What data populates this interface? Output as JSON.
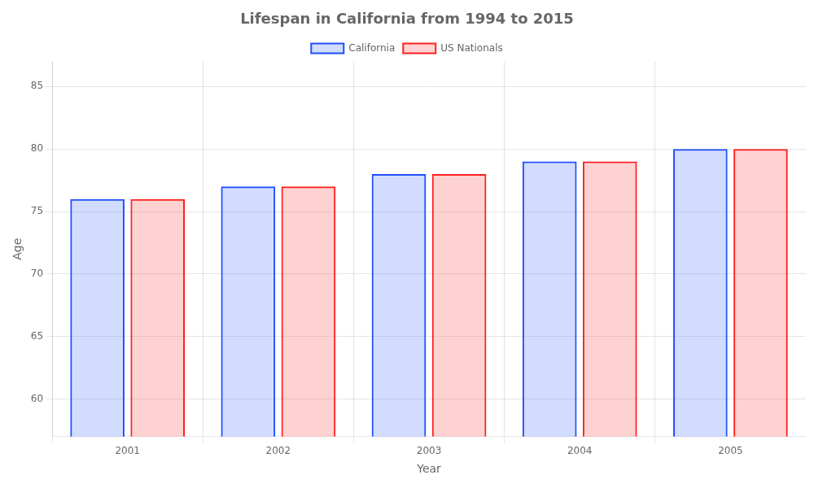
{
  "chart_data": {
    "type": "bar",
    "title": "Lifespan in California from 1994 to 2015",
    "xlabel": "Year",
    "ylabel": "Age",
    "categories": [
      "2001",
      "2002",
      "2003",
      "2004",
      "2005"
    ],
    "series": [
      {
        "name": "California",
        "color": "#1f4eff",
        "values": [
          76,
          77,
          78,
          79,
          80
        ]
      },
      {
        "name": "US Nationals",
        "color": "#ff1f1f",
        "values": [
          76,
          77,
          78,
          79,
          80
        ]
      }
    ],
    "ylim": [
      57,
      87
    ],
    "yticks": [
      60,
      65,
      70,
      75,
      80,
      85
    ],
    "grid": true,
    "legend": "top"
  }
}
